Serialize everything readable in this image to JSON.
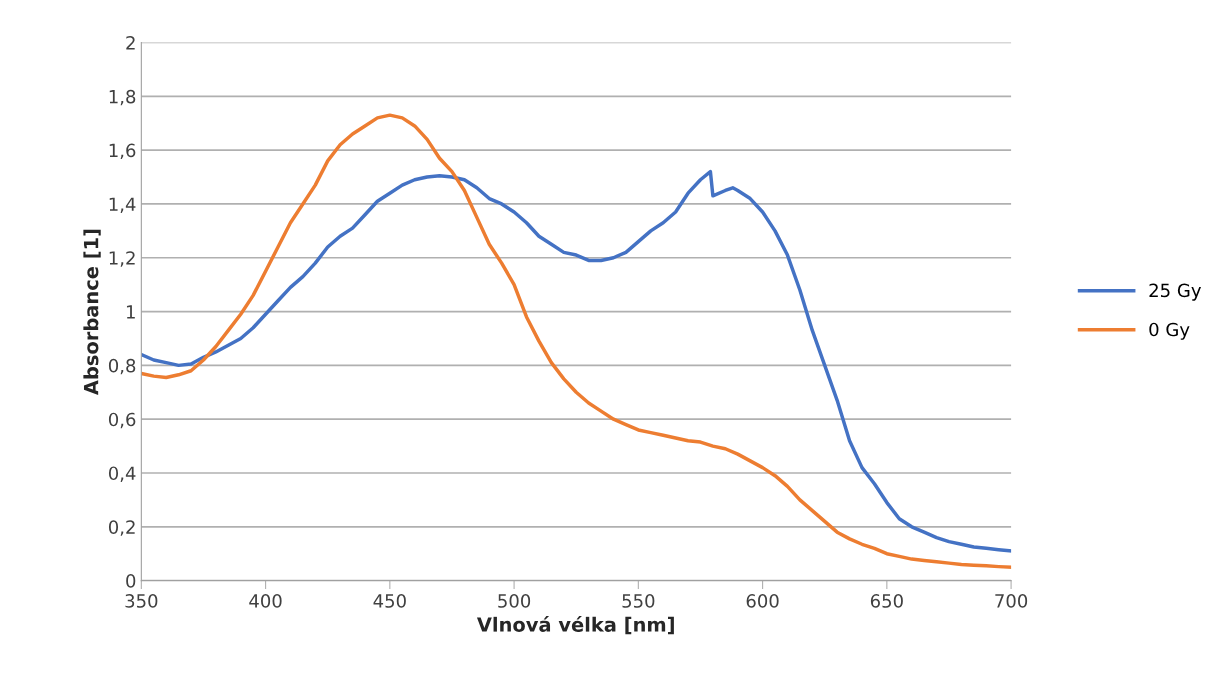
{
  "chart_data": {
    "type": "line",
    "xlabel": "Vlnová vélka [nm]",
    "ylabel": "Absorbance [1]",
    "xlim": [
      350,
      700
    ],
    "xticks": [
      350,
      400,
      450,
      500,
      550,
      600,
      650,
      700
    ],
    "ylim": [
      0,
      2
    ],
    "yticks": [
      0,
      {
        "value": 0.2,
        "label": "0,2"
      },
      {
        "value": 0.4,
        "label": "0,4"
      },
      {
        "value": 0.6,
        "label": "0,6"
      },
      {
        "value": 0.8,
        "label": "0,8"
      },
      1,
      {
        "value": 1.2,
        "label": "1,2"
      },
      {
        "value": 1.4,
        "label": "1,4"
      },
      {
        "value": 1.6,
        "label": "1,6"
      },
      {
        "value": 1.8,
        "label": "1,8"
      },
      2
    ],
    "grid": "y",
    "legend": "right",
    "marker": "none",
    "line_style": "solid",
    "series": [
      {
        "name": "25 Gy",
        "color": "#4472c4",
        "x": [
          350,
          355,
          360,
          365,
          370,
          375,
          380,
          385,
          390,
          395,
          400,
          405,
          410,
          415,
          420,
          425,
          430,
          435,
          440,
          445,
          450,
          455,
          460,
          465,
          470,
          475,
          480,
          485,
          490,
          495,
          500,
          505,
          510,
          515,
          520,
          525,
          530,
          535,
          540,
          545,
          550,
          555,
          560,
          565,
          570,
          575,
          579,
          580,
          585,
          588,
          590,
          595,
          600,
          605,
          610,
          615,
          620,
          625,
          630,
          635,
          640,
          645,
          650,
          655,
          660,
          665,
          670,
          675,
          680,
          685,
          690,
          695,
          700
        ],
        "values": [
          0.84,
          0.82,
          0.81,
          0.8,
          0.805,
          0.83,
          0.85,
          0.875,
          0.9,
          0.94,
          0.99,
          1.04,
          1.09,
          1.13,
          1.18,
          1.24,
          1.28,
          1.31,
          1.36,
          1.41,
          1.44,
          1.47,
          1.49,
          1.5,
          1.505,
          1.5,
          1.49,
          1.46,
          1.42,
          1.4,
          1.37,
          1.33,
          1.28,
          1.25,
          1.22,
          1.21,
          1.19,
          1.19,
          1.2,
          1.22,
          1.26,
          1.3,
          1.33,
          1.37,
          1.44,
          1.49,
          1.52,
          1.43,
          1.45,
          1.46,
          1.45,
          1.42,
          1.37,
          1.3,
          1.21,
          1.08,
          0.93,
          0.8,
          0.67,
          0.52,
          0.42,
          0.36,
          0.29,
          0.23,
          0.2,
          0.18,
          0.16,
          0.145,
          0.135,
          0.125,
          0.12,
          0.115,
          0.11
        ]
      },
      {
        "name": "0 Gy",
        "color": "#ed7d31",
        "x": [
          350,
          355,
          360,
          365,
          370,
          375,
          380,
          385,
          390,
          395,
          400,
          405,
          410,
          415,
          420,
          425,
          430,
          435,
          440,
          445,
          450,
          455,
          460,
          465,
          470,
          475,
          480,
          485,
          490,
          495,
          500,
          505,
          510,
          515,
          520,
          525,
          530,
          535,
          540,
          545,
          550,
          555,
          560,
          565,
          570,
          575,
          580,
          585,
          590,
          595,
          600,
          605,
          610,
          615,
          620,
          625,
          630,
          635,
          640,
          645,
          650,
          655,
          660,
          665,
          670,
          675,
          680,
          685,
          690,
          695,
          700
        ],
        "values": [
          0.77,
          0.76,
          0.755,
          0.765,
          0.78,
          0.82,
          0.87,
          0.93,
          0.99,
          1.06,
          1.15,
          1.24,
          1.33,
          1.4,
          1.47,
          1.56,
          1.62,
          1.66,
          1.69,
          1.72,
          1.73,
          1.72,
          1.69,
          1.64,
          1.57,
          1.52,
          1.45,
          1.35,
          1.25,
          1.18,
          1.1,
          0.98,
          0.89,
          0.81,
          0.75,
          0.7,
          0.66,
          0.63,
          0.6,
          0.58,
          0.56,
          0.55,
          0.54,
          0.53,
          0.52,
          0.515,
          0.5,
          0.49,
          0.47,
          0.445,
          0.42,
          0.39,
          0.35,
          0.3,
          0.26,
          0.22,
          0.18,
          0.155,
          0.135,
          0.12,
          0.1,
          0.09,
          0.08,
          0.075,
          0.07,
          0.065,
          0.06,
          0.057,
          0.055,
          0.052,
          0.05
        ]
      }
    ]
  }
}
